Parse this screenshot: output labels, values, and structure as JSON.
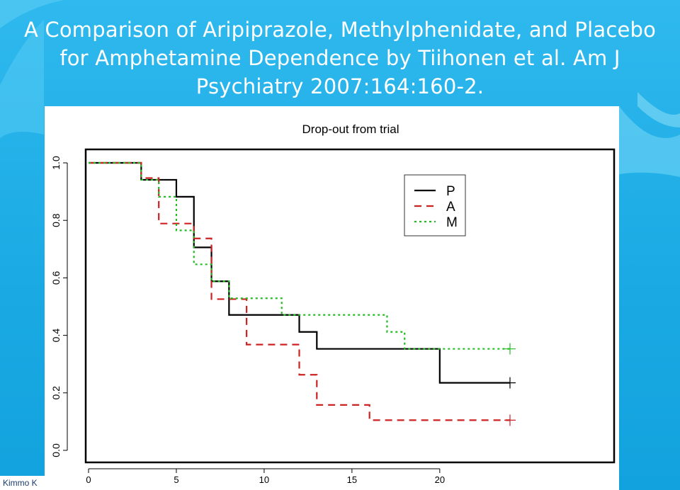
{
  "slide": {
    "title": "A Comparison of Aripiprazole, Methylphenidate, and Placebo for Amphetamine Dependence by Tiihonen et al. Am J Psychiatry 2007:164:160-2.",
    "footer_author": "Kimmo K"
  },
  "colors": {
    "background": "#22b3e8",
    "P": "#000000",
    "A": "#cc2222",
    "M": "#22bb22"
  },
  "chart_data": {
    "type": "line",
    "step": true,
    "title": "Drop-out from trial",
    "xlabel": "",
    "ylabel": "",
    "xlim": [
      0,
      24
    ],
    "ylim": [
      0,
      1
    ],
    "xticks": [
      "0",
      "5",
      "10",
      "15",
      "20"
    ],
    "yticks": [
      "0.0",
      "0.2",
      "0.4",
      "0.6",
      "0.8",
      "1.0"
    ],
    "legend_position": "top-right",
    "grid": false,
    "series": [
      {
        "name": "P",
        "style": "solid",
        "x": [
          0,
          3,
          5,
          6,
          7,
          8,
          12,
          13,
          20,
          24
        ],
        "y": [
          1.0,
          0.941,
          0.882,
          0.706,
          0.588,
          0.471,
          0.412,
          0.353,
          0.235,
          0.235
        ],
        "censored_at": [
          24
        ]
      },
      {
        "name": "A",
        "style": "dashed",
        "x": [
          0,
          3,
          4,
          6,
          7,
          9,
          12,
          13,
          16,
          24
        ],
        "y": [
          1.0,
          0.947,
          0.789,
          0.737,
          0.526,
          0.368,
          0.263,
          0.158,
          0.105,
          0.105
        ],
        "censored_at": [
          24
        ]
      },
      {
        "name": "M",
        "style": "dotted",
        "x": [
          0,
          3,
          4,
          5,
          6,
          7,
          8,
          11,
          17,
          18,
          24
        ],
        "y": [
          1.0,
          0.941,
          0.882,
          0.765,
          0.647,
          0.588,
          0.529,
          0.471,
          0.412,
          0.353,
          0.353
        ],
        "censored_at": [
          24
        ]
      }
    ]
  }
}
